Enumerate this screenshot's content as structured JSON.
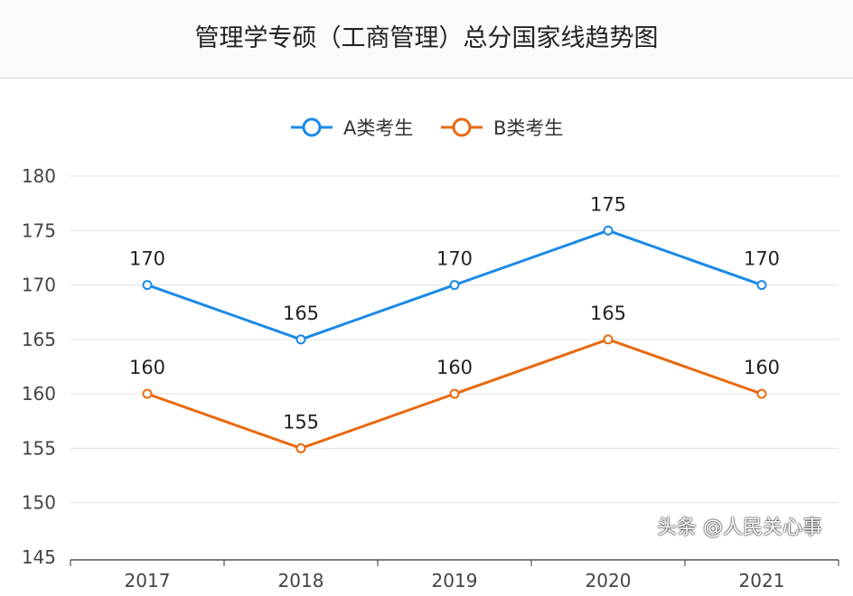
{
  "chart_data": {
    "type": "line",
    "title": "管理学专硕（工商管理）总分国家线趋势图",
    "categories": [
      "2017",
      "2018",
      "2019",
      "2020",
      "2021"
    ],
    "series": [
      {
        "name": "A类考生",
        "values": [
          170,
          165,
          170,
          175,
          170
        ],
        "color": "#1a8ae6"
      },
      {
        "name": "B类考生",
        "values": [
          160,
          155,
          160,
          165,
          160
        ],
        "color": "#e8690f"
      }
    ],
    "ylim": [
      145,
      180
    ],
    "yticks": [
      "145",
      "150",
      "155",
      "160",
      "165",
      "170",
      "175",
      "180"
    ],
    "grid": true,
    "legend": "top",
    "xlabel": "",
    "ylabel": ""
  },
  "watermark": "头条 @人民关心事"
}
